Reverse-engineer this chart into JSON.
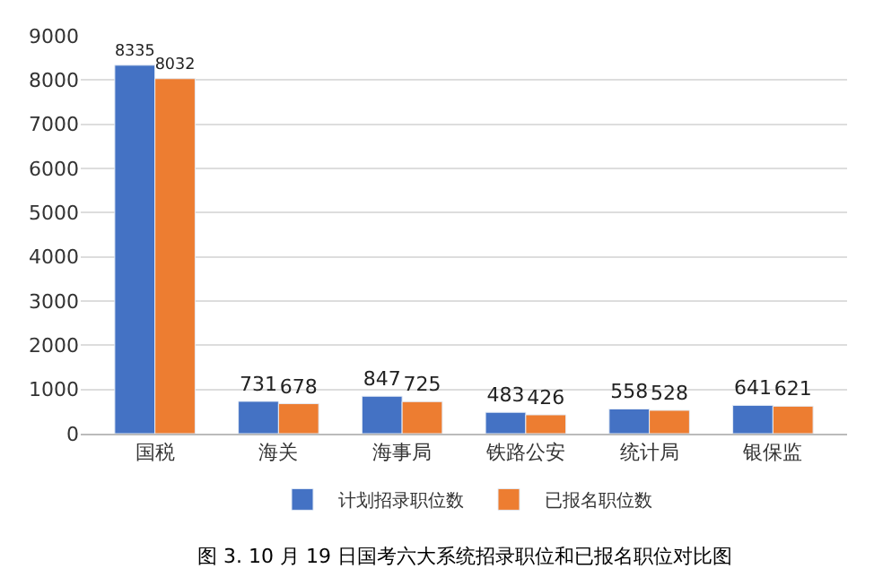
{
  "chart_data": {
    "type": "bar",
    "categories": [
      "国税",
      "海关",
      "海事局",
      "铁路公安",
      "统计局",
      "银保监"
    ],
    "series": [
      {
        "name": "计划招录职位数",
        "color": "#4472c4",
        "values": [
          8335,
          731,
          847,
          483,
          558,
          641
        ]
      },
      {
        "name": "已报名职位数",
        "color": "#ed7d31",
        "values": [
          8032,
          678,
          725,
          426,
          528,
          621
        ]
      }
    ],
    "ylim": [
      0,
      9000
    ],
    "yticks": [
      0,
      1000,
      2000,
      3000,
      4000,
      5000,
      6000,
      7000,
      8000,
      9000
    ],
    "grid": "y",
    "legend": "bottom",
    "data_labels": true,
    "annotations": [
      "图 3. 10 月 19 日国考六大系统招录职位和已报名职位对比图"
    ]
  }
}
